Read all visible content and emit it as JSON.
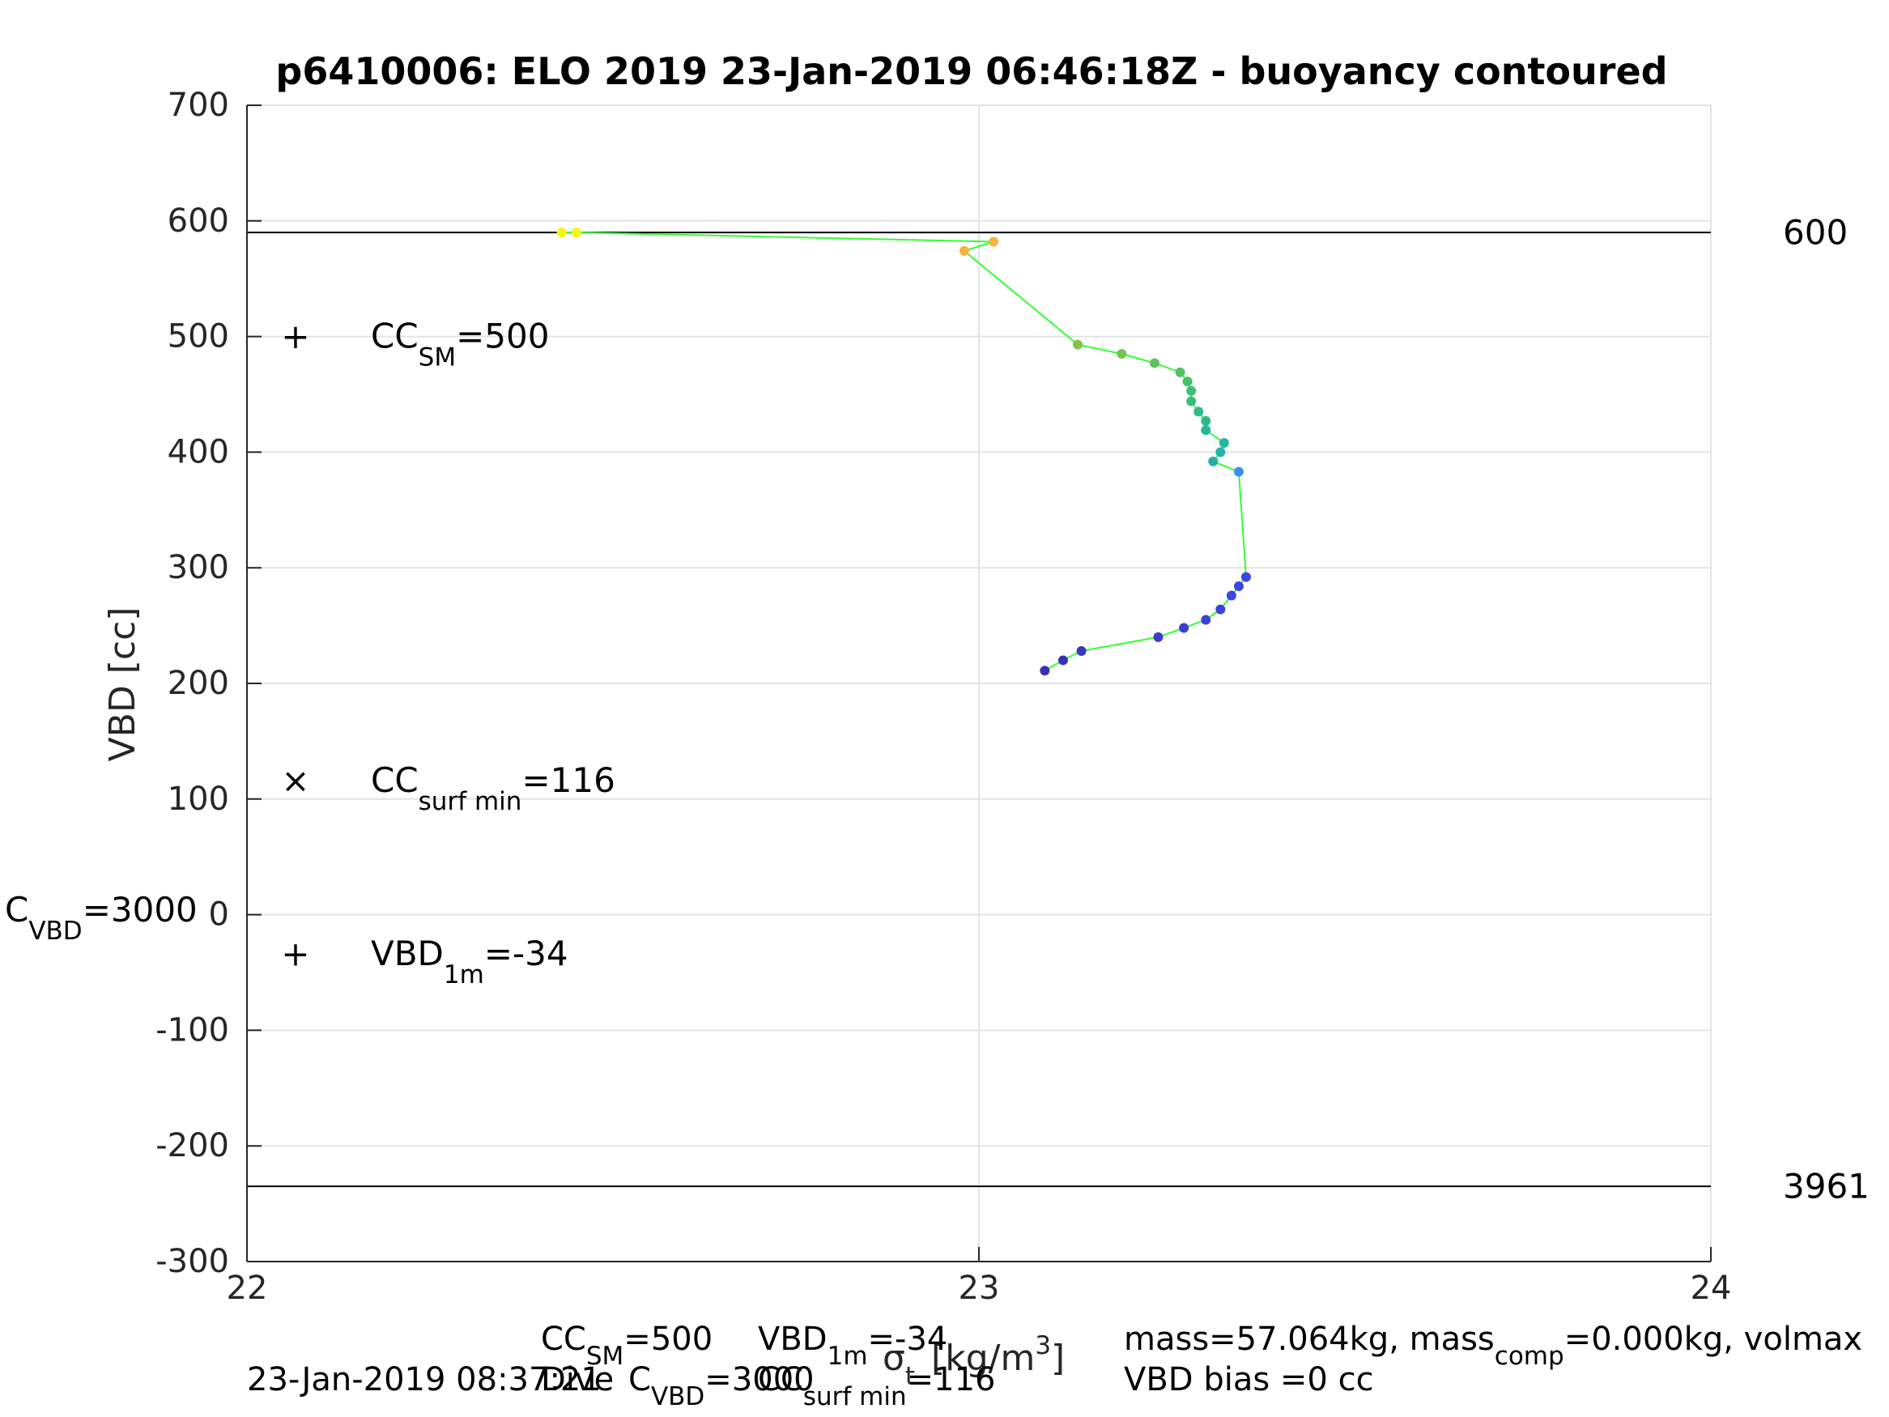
{
  "chart_data": {
    "type": "scatter",
    "title": "p6410006: ELO 2019 23-Jan-2019 06:46:18Z - buoyancy contoured",
    "xlabel": "σ",
    "xlabel_sub": "t",
    "xlabel_units": "[kg/m",
    "xlabel_units_sup": "3",
    "xlabel_units_end": "]",
    "ylabel": "VBD [cc]",
    "xlim": [
      22,
      24
    ],
    "ylim": [
      -300,
      700
    ],
    "xticks": [
      "22",
      "23",
      "24"
    ],
    "yticks": [
      "-300",
      "-200",
      "-100",
      "0",
      "100",
      "200",
      "300",
      "400",
      "500",
      "600",
      "700"
    ],
    "grid": true,
    "hlines": [
      {
        "y": 590,
        "label": "600"
      },
      {
        "y": -235,
        "label": "3961"
      }
    ],
    "series": [
      {
        "line_color": "#33ff33",
        "points": [
          {
            "x": 22.43,
            "y": 590,
            "c": "#f5f516"
          },
          {
            "x": 22.45,
            "y": 590,
            "c": "#f5f516"
          },
          {
            "x": 23.02,
            "y": 582,
            "c": "#f5b440"
          },
          {
            "x": 22.98,
            "y": 574,
            "c": "#f5b440"
          },
          {
            "x": 23.135,
            "y": 493,
            "c": "#84c448"
          },
          {
            "x": 23.195,
            "y": 485,
            "c": "#75c452"
          },
          {
            "x": 23.24,
            "y": 477,
            "c": "#5fc35d"
          },
          {
            "x": 23.275,
            "y": 469,
            "c": "#52c266"
          },
          {
            "x": 23.285,
            "y": 461,
            "c": "#45c06d"
          },
          {
            "x": 23.29,
            "y": 453,
            "c": "#3fbf74"
          },
          {
            "x": 23.29,
            "y": 444,
            "c": "#38bd7c"
          },
          {
            "x": 23.3,
            "y": 435,
            "c": "#30bb86"
          },
          {
            "x": 23.31,
            "y": 427,
            "c": "#2bba8d"
          },
          {
            "x": 23.31,
            "y": 419,
            "c": "#27b995"
          },
          {
            "x": 23.335,
            "y": 408,
            "c": "#23b7a0"
          },
          {
            "x": 23.33,
            "y": 400,
            "c": "#22b3ab"
          },
          {
            "x": 23.32,
            "y": 392,
            "c": "#24b0a6"
          },
          {
            "x": 23.355,
            "y": 383,
            "c": "#3b8ff2"
          },
          {
            "x": 23.365,
            "y": 292,
            "c": "#3e45e5"
          },
          {
            "x": 23.355,
            "y": 284,
            "c": "#3e45e5"
          },
          {
            "x": 23.345,
            "y": 276,
            "c": "#3e45e5"
          },
          {
            "x": 23.33,
            "y": 264,
            "c": "#3d40d8"
          },
          {
            "x": 23.31,
            "y": 255,
            "c": "#3d40d8"
          },
          {
            "x": 23.28,
            "y": 248,
            "c": "#3d3ccd"
          },
          {
            "x": 23.245,
            "y": 240,
            "c": "#3d3ccd"
          },
          {
            "x": 23.14,
            "y": 228,
            "c": "#3c36c0"
          },
          {
            "x": 23.115,
            "y": 220,
            "c": "#3a30b5"
          },
          {
            "x": 23.09,
            "y": 211,
            "c": "#3a30b5"
          }
        ]
      }
    ],
    "annotations": {
      "cc_sm": {
        "y": 500,
        "marker": "+",
        "color": "#ff0000",
        "pre": "CC",
        "sub": "SM",
        "post": "=500"
      },
      "cc_surf": {
        "y": 116,
        "marker": "×",
        "color": "#ff0000",
        "pre": "CC",
        "sub": "surf min",
        "post": "=116"
      },
      "vbd_1m": {
        "y": -34,
        "marker": "+",
        "color": "#ff0000",
        "pre": "VBD",
        "sub": "1m",
        "post": "=-34"
      },
      "c_vbd": {
        "pre": "C",
        "sub": "VBD",
        "post": "=3000"
      }
    }
  },
  "footer": {
    "timestamp": "23-Jan-2019 08:37:21",
    "dive_label": "Dive",
    "ccsm_pre": "CC",
    "ccsm_sub": "SM",
    "ccsm_post": "=500",
    "cvbd_pre": "C",
    "cvbd_sub": "VBD",
    "cvbd_post": "=3000",
    "vbd1m_pre": "VBD",
    "vbd1m_sub": "1m",
    "vbd1m_post": "=-34",
    "ccsurf_pre": "CC",
    "ccsurf_sub": "surf min",
    "ccsurf_post": "=116",
    "mass_pre": "mass=57.064kg, mass",
    "mass_sub": "comp",
    "mass_post": "=0.000kg, volmax",
    "bias": "VBD bias =0 cc"
  }
}
